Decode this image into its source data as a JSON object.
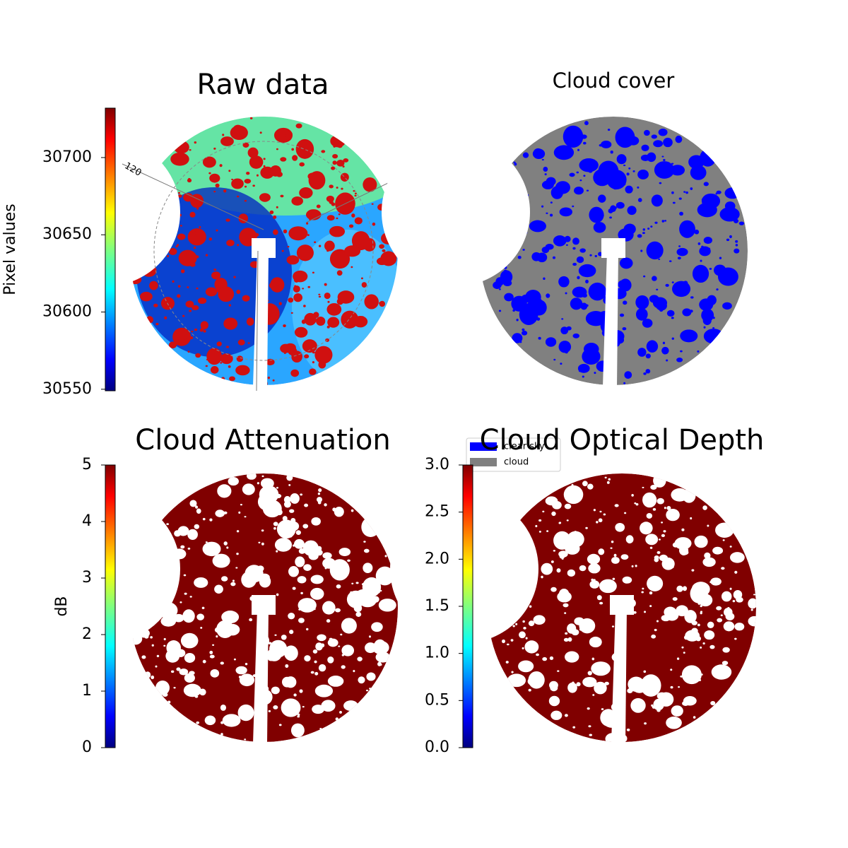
{
  "panels": [
    {
      "title": "Raw data",
      "colorbar": {
        "label": "Pixel values",
        "lim": [
          30549,
          30732
        ],
        "ticks": [
          30550,
          30600,
          30650,
          30700
        ]
      },
      "overlay_label": "120"
    },
    {
      "title": "Cloud cover",
      "legend": [
        {
          "name": "clear sky",
          "color": "#0000ff"
        },
        {
          "name": "cloud",
          "color": "#808080"
        }
      ]
    },
    {
      "title": "Cloud Attenuation",
      "colorbar": {
        "label": "dB",
        "lim": [
          0,
          5
        ],
        "ticks": [
          0,
          1,
          2,
          3,
          4,
          5
        ]
      }
    },
    {
      "title": "Cloud Optical Depth",
      "colorbar": {
        "lim": [
          0,
          3
        ],
        "ticks": [
          {
            "value": 0,
            "label": "0.0"
          },
          {
            "value": 0.5,
            "label": "0.5"
          },
          {
            "value": 1,
            "label": "1.0"
          },
          {
            "value": 1.5,
            "label": "1.5"
          },
          {
            "value": 2,
            "label": "2.0"
          },
          {
            "value": 2.5,
            "label": "2.5"
          },
          {
            "value": 3,
            "label": "3.0"
          }
        ]
      }
    }
  ]
}
